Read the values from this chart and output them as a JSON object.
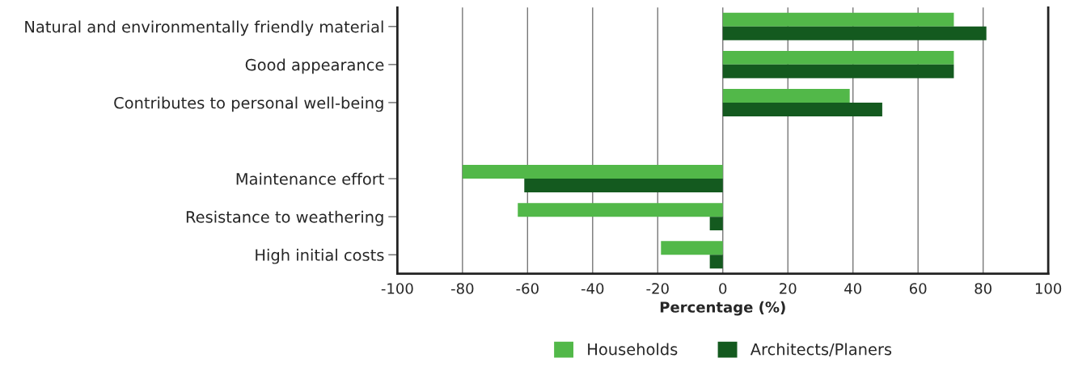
{
  "chart_data": {
    "type": "bar",
    "orientation": "horizontal",
    "xlabel": "Percentage (%)",
    "categories": [
      "Natural and environmentally friendly material",
      "Good appearance",
      "Contributes to personal well-being",
      null,
      "Maintenance effort",
      "Resistance to weathering",
      "High initial costs"
    ],
    "series": [
      {
        "name": "Households",
        "color": "#52b849",
        "values": [
          71,
          71,
          39,
          null,
          -80,
          -63,
          -19
        ]
      },
      {
        "name": "Architects/Planers",
        "color": "#145a1f",
        "values": [
          81,
          71,
          49,
          null,
          -61,
          -4,
          -4
        ]
      }
    ],
    "xlim": [
      -100,
      100
    ],
    "xticks": [
      -100,
      -80,
      -60,
      -40,
      -20,
      0,
      20,
      40,
      60,
      80,
      100
    ],
    "grid": "x",
    "legend": "bottom"
  }
}
